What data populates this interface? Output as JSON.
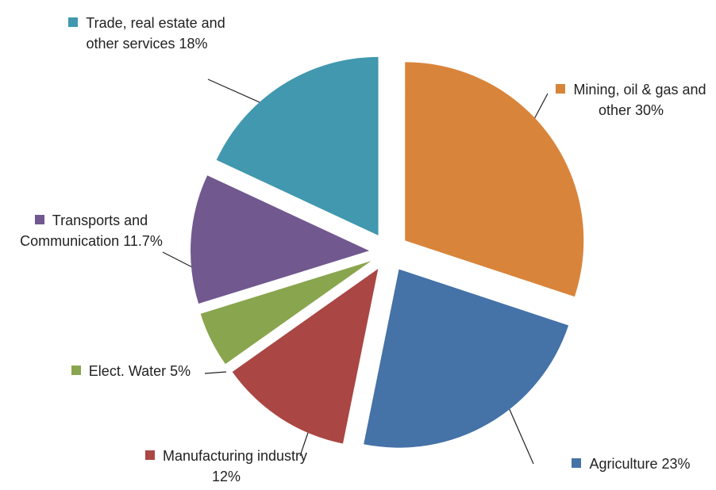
{
  "chart_data": {
    "type": "pie",
    "categories": [
      "Mining, oil & gas and other",
      "Agriculture",
      "Manufacturing industry",
      "Elect. Water",
      "Transports and Communication",
      "Trade, real estate and other services"
    ],
    "values": [
      30,
      23,
      12,
      5,
      11.7,
      18
    ],
    "value_labels": [
      "30%",
      "23%",
      "12%",
      "5%",
      "11.7%",
      "18%"
    ],
    "colors": [
      "#d9843b",
      "#4572a7",
      "#aa4643",
      "#89a54e",
      "#71588f",
      "#4198af"
    ]
  }
}
